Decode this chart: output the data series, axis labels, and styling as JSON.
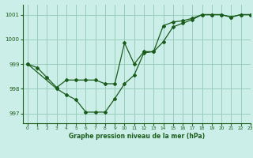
{
  "title": "Graphe pression niveau de la mer (hPa)",
  "background_color": "#cceee8",
  "grid_color": "#99ccbb",
  "line_color": "#1a5c1a",
  "xlim": [
    -0.5,
    23
  ],
  "ylim": [
    996.6,
    1001.4
  ],
  "yticks": [
    997,
    998,
    999,
    1000,
    1001
  ],
  "xticks": [
    0,
    1,
    2,
    3,
    4,
    5,
    6,
    7,
    8,
    9,
    10,
    11,
    12,
    13,
    14,
    15,
    16,
    17,
    18,
    19,
    20,
    21,
    22,
    23
  ],
  "series1_x": [
    0,
    1,
    2,
    3,
    4,
    5,
    6,
    7,
    8,
    9,
    10,
    11,
    12,
    13,
    14,
    15,
    16,
    17,
    18,
    19,
    20,
    21,
    22,
    23
  ],
  "series1_y": [
    999.0,
    998.85,
    998.45,
    998.05,
    998.35,
    998.35,
    998.35,
    998.35,
    998.2,
    998.2,
    999.85,
    999.0,
    999.5,
    999.5,
    1000.55,
    1000.7,
    1000.75,
    1000.85,
    1001.0,
    1001.0,
    1001.0,
    1000.9,
    1001.0,
    1001.0
  ],
  "series2_x": [
    0,
    3,
    4,
    5,
    6,
    7,
    8,
    9,
    10,
    11,
    12,
    13,
    14,
    15,
    16,
    17,
    18,
    19,
    20,
    21,
    22,
    23
  ],
  "series2_y": [
    999.0,
    998.0,
    997.75,
    997.55,
    997.05,
    997.05,
    997.05,
    997.6,
    998.2,
    998.55,
    999.45,
    999.5,
    999.9,
    1000.5,
    1000.65,
    1000.8,
    1001.0,
    1001.0,
    1001.0,
    1000.9,
    1001.0,
    1001.0
  ]
}
